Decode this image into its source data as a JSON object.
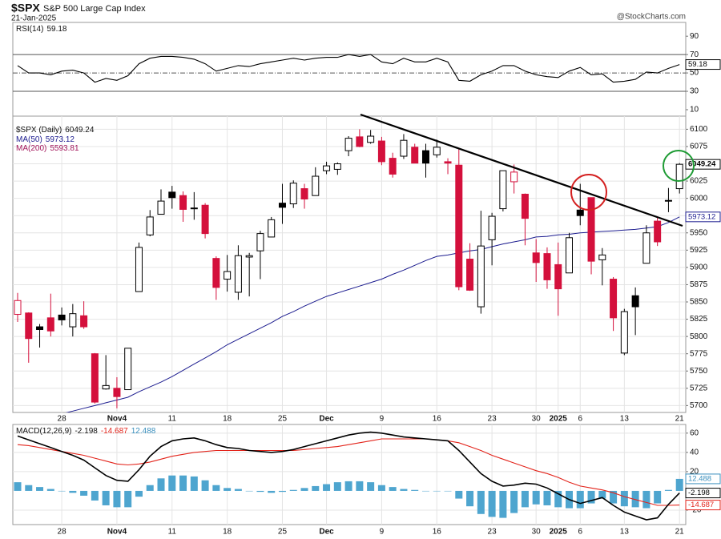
{
  "header": {
    "symbol": "$SPX",
    "name": "S&P 500 Large Cap Index",
    "date": "21-Jan-2025",
    "source": "@StockCharts.com"
  },
  "chart_data": [
    {
      "type": "line",
      "ylim": [
        3,
        105
      ],
      "yticks": [
        90,
        70,
        50,
        30,
        10
      ],
      "reference_lines": [
        {
          "value": 70,
          "style": "solid"
        },
        {
          "value": 50,
          "style": "dashdot"
        },
        {
          "value": 30,
          "style": "solid"
        }
      ],
      "series": [
        {
          "name": "RSI(14)",
          "color": "#000000",
          "values": [
            58,
            50,
            50,
            48,
            52,
            53,
            50,
            40,
            44,
            42,
            47,
            60,
            66,
            68,
            68,
            67,
            65,
            60,
            52,
            55,
            58,
            57,
            60,
            62,
            64,
            66,
            64,
            66,
            67,
            67,
            70,
            68,
            70,
            62,
            60,
            66,
            62,
            62,
            66,
            62,
            42,
            41,
            48,
            52,
            58,
            58,
            52,
            48,
            46,
            45,
            52,
            56,
            48,
            49,
            40,
            41,
            43,
            51,
            50,
            55,
            59.18
          ]
        }
      ]
    },
    {
      "type": "candlestick",
      "label": "$SPX (Daily)",
      "ylim": [
        5690,
        6119
      ],
      "grid": true,
      "yticks": [
        6100,
        6075,
        6050,
        6025,
        6000,
        5975,
        5950,
        5925,
        5900,
        5875,
        5850,
        5825,
        5800,
        5775,
        5750,
        5725,
        5700
      ],
      "up_color": "#000000",
      "down_color": "#d4103c",
      "categories": [
        null,
        null,
        null,
        null,
        "28",
        null,
        null,
        null,
        null,
        "Nov4",
        null,
        null,
        null,
        null,
        "11",
        null,
        null,
        null,
        null,
        "18",
        null,
        null,
        null,
        null,
        "25",
        null,
        null,
        null,
        "Dec",
        null,
        null,
        null,
        null,
        "9",
        null,
        null,
        null,
        null,
        "16",
        null,
        null,
        null,
        null,
        "23",
        null,
        null,
        null,
        "30",
        null,
        "2025",
        null,
        "6",
        null,
        null,
        null,
        "13",
        null,
        null,
        null,
        null,
        "21"
      ],
      "open": [
        5832,
        5834,
        5814,
        5827,
        5831,
        5814,
        5830,
        5775,
        5724,
        5725,
        5723,
        5865,
        5947,
        5977,
        6009,
        6004,
        5986,
        5990,
        5913,
        5883,
        5864,
        5915,
        5924,
        5944,
        5993,
        5992,
        6014,
        6004,
        6040,
        6042,
        6069,
        6089,
        6081,
        6083,
        6058,
        6061,
        6074,
        6069,
        6063,
        6053,
        6048,
        5912,
        5843,
        5940,
        5985,
        6024,
        6006,
        5921,
        5920,
        5904,
        5892,
        5983,
        6001,
        5911,
        5883,
        5776,
        5859,
        5906,
        5967,
        5996,
        6014
      ],
      "high": [
        5863,
        5835,
        5818,
        5862,
        5842,
        5847,
        5851,
        5776,
        5773,
        5741,
        5783,
        5936,
        5983,
        6013,
        6018,
        6010,
        6009,
        5993,
        5916,
        5918,
        5932,
        5921,
        5953,
        5973,
        6021,
        6026,
        6021,
        6045,
        6053,
        6052,
        6090,
        6100,
        6099,
        6089,
        6066,
        6093,
        6079,
        6079,
        6085,
        6058,
        6071,
        5935,
        5982,
        5979,
        6040,
        6049,
        6007,
        5941,
        5929,
        5936,
        5950,
        6021,
        6001,
        5928,
        5886,
        5840,
        5871,
        5961,
        5972,
        6015,
        6051
      ],
      "low": [
        5821,
        5762,
        5784,
        5800,
        5816,
        5800,
        5811,
        5703,
        5723,
        5696,
        5723,
        5865,
        5945,
        5977,
        5985,
        5966,
        5969,
        5942,
        5853,
        5865,
        5853,
        5858,
        5883,
        5944,
        5963,
        5986,
        5985,
        6004,
        6035,
        6034,
        6061,
        6074,
        6079,
        6048,
        6030,
        6057,
        6051,
        6030,
        6059,
        6035,
        5867,
        5866,
        5833,
        5903,
        5981,
        6007,
        5932,
        5879,
        5869,
        5830,
        5892,
        5961,
        5890,
        5874,
        5808,
        5773,
        5802,
        5906,
        5931,
        5980,
        6007
      ],
      "close": [
        5852,
        5797,
        5810,
        5808,
        5824,
        5833,
        5814,
        5705,
        5729,
        5713,
        5783,
        5929,
        5973,
        5996,
        6001,
        5984,
        5985,
        5949,
        5871,
        5894,
        5917,
        5917,
        5949,
        5969,
        5987,
        6022,
        5999,
        6032,
        6047,
        6050,
        6087,
        6075,
        6090,
        6053,
        6035,
        6084,
        6051,
        6051,
        6074,
        6051,
        5872,
        5867,
        5931,
        5974,
        6040,
        6038,
        5971,
        5907,
        5882,
        5869,
        5943,
        5975,
        5909,
        5918,
        5827,
        5836,
        5843,
        5950,
        5937,
        5997,
        6049.24
      ],
      "ma50": {
        "name": "MA(50)",
        "color": "#1c1c8f",
        "values": [
          null,
          null,
          null,
          null,
          5688,
          5692,
          5696,
          5700,
          5704,
          5708,
          5712,
          5720,
          5727,
          5734,
          5742,
          5751,
          5760,
          5769,
          5778,
          5788,
          5796,
          5804,
          5812,
          5820,
          5829,
          5836,
          5844,
          5851,
          5858,
          5863,
          5868,
          5873,
          5878,
          5883,
          5890,
          5896,
          5903,
          5910,
          5916,
          5918,
          5921,
          5924,
          5926,
          5930,
          5934,
          5937,
          5940,
          5944,
          5945,
          5947,
          5948,
          5950,
          5951,
          5952,
          5953,
          5954,
          5955,
          5957,
          5959,
          5965,
          5973.12
        ]
      },
      "ma200": {
        "name": "MA(200)",
        "color": "#a3175c",
        "last": 5593.81
      }
    },
    {
      "type": "macd",
      "label": "MACD(12,26,9)",
      "ylim": [
        -35,
        69
      ],
      "yticks": [
        60,
        40,
        20,
        -20
      ],
      "grid": true,
      "macd": {
        "color": "#000000",
        "values": [
          57,
          53,
          49,
          45,
          41,
          37,
          32,
          24,
          16,
          11,
          10,
          22,
          36,
          46,
          52,
          54,
          55,
          52,
          48,
          45,
          44,
          42,
          41,
          40,
          41,
          43,
          46,
          49,
          52,
          55,
          58,
          60,
          61,
          60,
          58,
          56,
          55,
          54,
          53,
          52,
          42,
          30,
          18,
          10,
          5,
          6,
          8,
          7,
          3,
          -3,
          -9,
          -13,
          -10,
          -7,
          -15,
          -22,
          -26,
          -30,
          -28,
          -14,
          -2.198
        ]
      },
      "signal": {
        "color": "#e3241b",
        "values": [
          48,
          47,
          45,
          43,
          41,
          39,
          37,
          34,
          31,
          28,
          27,
          28,
          30,
          33,
          36,
          38,
          40,
          41,
          42,
          42,
          42,
          42,
          42,
          42,
          42,
          42,
          43,
          44,
          45,
          46,
          48,
          50,
          52,
          54,
          54,
          54,
          54,
          54,
          53,
          52,
          50,
          46,
          42,
          37,
          33,
          29,
          25,
          21,
          18,
          14,
          9,
          5,
          3,
          1,
          -2,
          -6,
          -9,
          -12,
          -15,
          -15,
          -14.687
        ]
      },
      "histogram": {
        "color": "#4ea5cf",
        "values": [
          9,
          6,
          4,
          2,
          0,
          -2,
          -5,
          -10,
          -15,
          -17,
          -17,
          -6,
          6,
          13,
          16,
          16,
          15,
          11,
          6,
          3,
          2,
          0,
          -1,
          -2,
          -1,
          1,
          3,
          5,
          7,
          9,
          10,
          10,
          9,
          6,
          4,
          2,
          1,
          0,
          0,
          0,
          -8,
          -16,
          -24,
          -27,
          -28,
          -23,
          -17,
          -14,
          -15,
          -17,
          -18,
          -18,
          -13,
          -8,
          -13,
          -16,
          -17,
          -18,
          -13,
          1,
          12.488
        ]
      }
    }
  ]
}
